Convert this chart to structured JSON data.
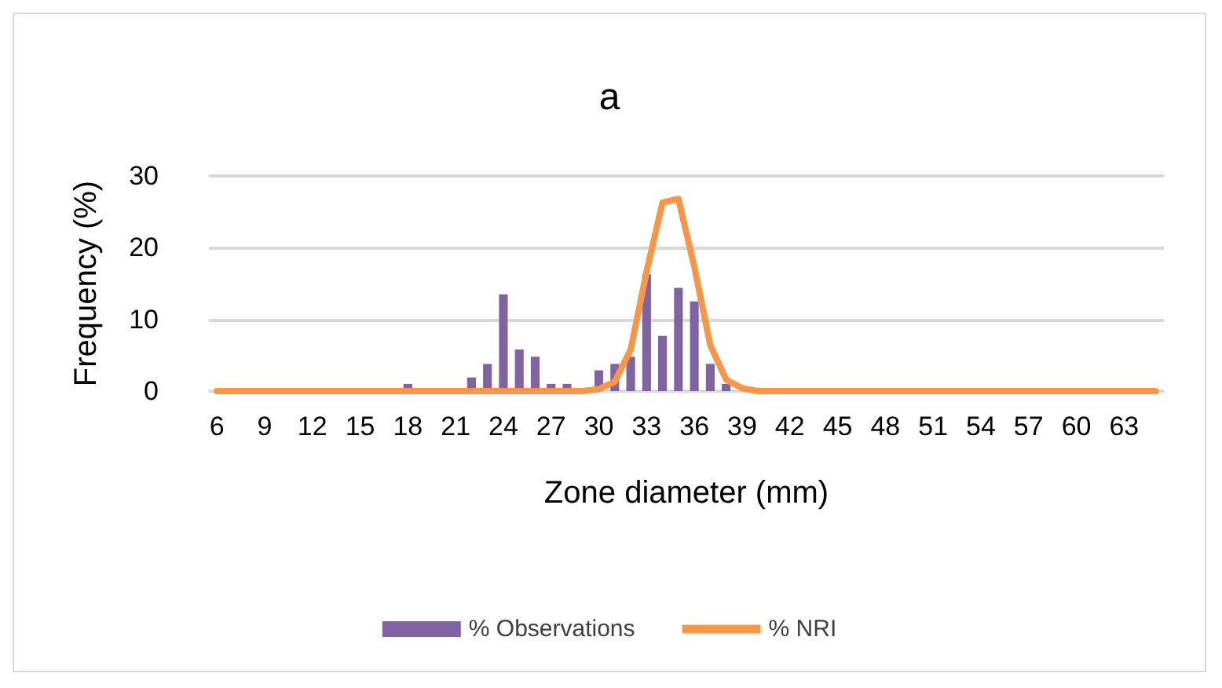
{
  "chart_data": {
    "type": "bar",
    "title": "a",
    "xlabel": "Zone diameter (mm)",
    "ylabel": "Frequency (%)",
    "categories": [
      "6",
      null,
      null,
      "9",
      null,
      null,
      "12",
      null,
      null,
      "15",
      null,
      null,
      "18",
      null,
      null,
      "21",
      null,
      null,
      "24",
      null,
      null,
      "27",
      null,
      null,
      "30",
      null,
      null,
      "33",
      null,
      null,
      "36",
      null,
      null,
      "39",
      null,
      null,
      "42",
      null,
      null,
      "45",
      null,
      null,
      "48",
      null,
      null,
      "51",
      null,
      null,
      "54",
      null,
      null,
      "57",
      null,
      null,
      "60",
      null,
      null,
      "63",
      null,
      null
    ],
    "series": [
      {
        "name": "% Observations",
        "color": "#8064a2",
        "values": [
          0,
          0,
          0,
          0,
          0,
          0,
          0,
          0,
          0,
          0,
          0,
          0,
          1.0,
          0,
          0,
          0,
          1.9,
          3.8,
          13.5,
          5.8,
          4.8,
          1.0,
          1.0,
          0,
          2.9,
          3.8,
          4.8,
          16.3,
          7.7,
          14.4,
          12.5,
          3.8,
          1.0,
          0,
          0,
          0,
          0,
          0,
          0,
          0,
          0,
          0,
          0,
          0,
          0,
          0,
          0,
          0,
          0,
          0,
          0,
          0,
          0,
          0,
          0,
          0,
          0,
          0,
          0,
          0
        ]
      },
      {
        "name": "% NRI",
        "type": "line",
        "color": "#f79646",
        "values": [
          0,
          0,
          0,
          0,
          0,
          0,
          0,
          0,
          0,
          0,
          0,
          0,
          0,
          0,
          0,
          0,
          0,
          0,
          0,
          0,
          0,
          0,
          0,
          0.0,
          0.3,
          1.3,
          5.8,
          16.7,
          26.3,
          26.8,
          17.3,
          6.4,
          1.6,
          0.4,
          0,
          0,
          0,
          0,
          0,
          0,
          0,
          0,
          0,
          0,
          0,
          0,
          0,
          0,
          0,
          0,
          0,
          0,
          0,
          0,
          0,
          0,
          0,
          0,
          0,
          0
        ]
      }
    ],
    "ylim": [
      0,
      30
    ],
    "yticks": [
      0,
      10,
      20,
      30
    ],
    "grid": "y",
    "legend": "bottom",
    "marker": "none",
    "line_style": "solid"
  }
}
